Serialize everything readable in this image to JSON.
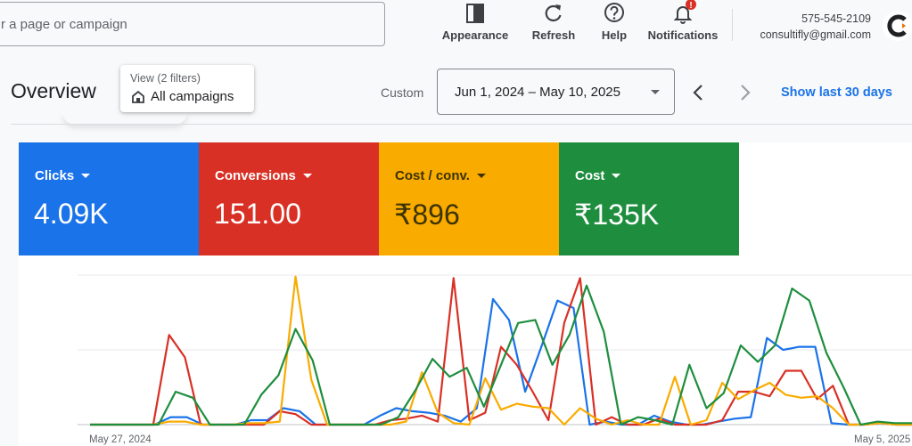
{
  "search": {
    "placeholder": "r a page or campaign"
  },
  "toolbar": [
    {
      "name": "appearance",
      "label": "Appearance",
      "icon": "appearance-icon"
    },
    {
      "name": "refresh",
      "label": "Refresh",
      "icon": "refresh-icon"
    },
    {
      "name": "help",
      "label": "Help",
      "icon": "help-icon"
    },
    {
      "name": "notifications",
      "label": "Notifications",
      "icon": "bell-icon",
      "badge": "!"
    }
  ],
  "account": {
    "phone": "575-545-2109",
    "email": "consultifly@gmail.com"
  },
  "page": {
    "title": "Overview"
  },
  "filter": {
    "sub_label": "View (2 filters)",
    "label": "All campaigns"
  },
  "date_range": {
    "mode_label": "Custom",
    "value": "Jun 1, 2024 – May 10, 2025",
    "quick_link": "Show last 30 days"
  },
  "kpis": [
    {
      "label": "Clicks",
      "value": "4.09K",
      "color": "#1a73e8"
    },
    {
      "label": "Conversions",
      "value": "151.00",
      "color": "#d93025"
    },
    {
      "label": "Cost / conv.",
      "value": "₹896",
      "color": "#f9ab00"
    },
    {
      "label": "Cost",
      "value": "₹135K",
      "color": "#1e8e3e"
    }
  ],
  "chart_data": {
    "type": "line",
    "x_start_label": "May 27, 2024",
    "x_end_label": "May 5, 2025",
    "series": [
      {
        "color": "#1a73e8",
        "values": [
          0,
          0,
          0,
          0,
          0,
          5,
          5,
          0,
          0,
          0,
          3,
          3,
          11,
          9,
          0,
          0,
          0,
          0,
          6,
          11,
          9,
          8,
          6,
          2,
          11,
          84,
          70,
          22,
          52,
          83,
          78,
          0,
          2,
          0,
          0,
          6,
          2,
          0,
          0,
          2,
          4,
          5,
          58,
          50,
          52,
          52,
          1,
          0,
          0,
          1,
          0,
          0
        ]
      },
      {
        "color": "#d93025",
        "values": [
          0,
          0,
          0,
          0,
          0,
          60,
          45,
          0,
          0,
          0,
          0,
          0,
          9,
          7,
          0,
          0,
          0,
          0,
          0,
          3,
          4,
          6,
          2,
          98,
          3,
          8,
          52,
          40,
          22,
          3,
          68,
          98,
          0,
          5,
          0,
          0,
          4,
          0,
          0,
          0,
          3,
          22,
          22,
          19,
          36,
          36,
          17,
          26,
          0,
          0,
          1,
          0,
          0
        ]
      },
      {
        "color": "#f9ab00",
        "values": [
          0,
          0,
          0,
          0,
          0,
          2,
          2,
          0,
          0,
          0,
          1,
          1,
          2,
          99,
          30,
          0,
          0,
          0,
          0,
          0,
          2,
          35,
          8,
          1,
          0,
          31,
          10,
          14,
          12,
          11,
          0,
          11,
          4,
          0,
          3,
          0,
          0,
          32,
          0,
          3,
          28,
          17,
          23,
          28,
          20,
          18,
          19,
          11,
          0,
          0,
          1,
          0,
          0
        ]
      },
      {
        "color": "#1e8e3e",
        "values": [
          0,
          0,
          0,
          0,
          0,
          22,
          18,
          0,
          0,
          0,
          20,
          33,
          64,
          43,
          0,
          0,
          0,
          0,
          5,
          23,
          44,
          32,
          38,
          12,
          40,
          68,
          70,
          40,
          60,
          93,
          62,
          0,
          5,
          3,
          0,
          40,
          11,
          21,
          53,
          42,
          53,
          91,
          83,
          48,
          25,
          0,
          2,
          1,
          1
        ]
      }
    ],
    "grid": true
  }
}
